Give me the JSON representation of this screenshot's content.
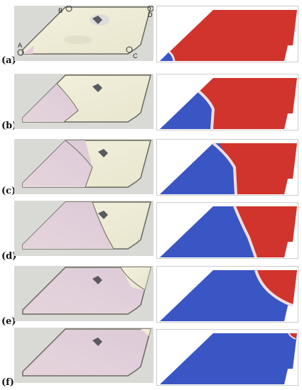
{
  "figure": {
    "panels": [
      {
        "label": "(a)"
      },
      {
        "label": "(b)"
      },
      {
        "label": "(c)"
      },
      {
        "label": "(d)"
      },
      {
        "label": "(e)"
      },
      {
        "label": "(f)"
      }
    ],
    "markers": {
      "A": "A",
      "B": "B",
      "C": "C",
      "D": "D"
    },
    "colors": {
      "blue_phase": "#3a55c4",
      "red_phase": "#d0342c",
      "background_gray": "#d9d9d6"
    }
  }
}
